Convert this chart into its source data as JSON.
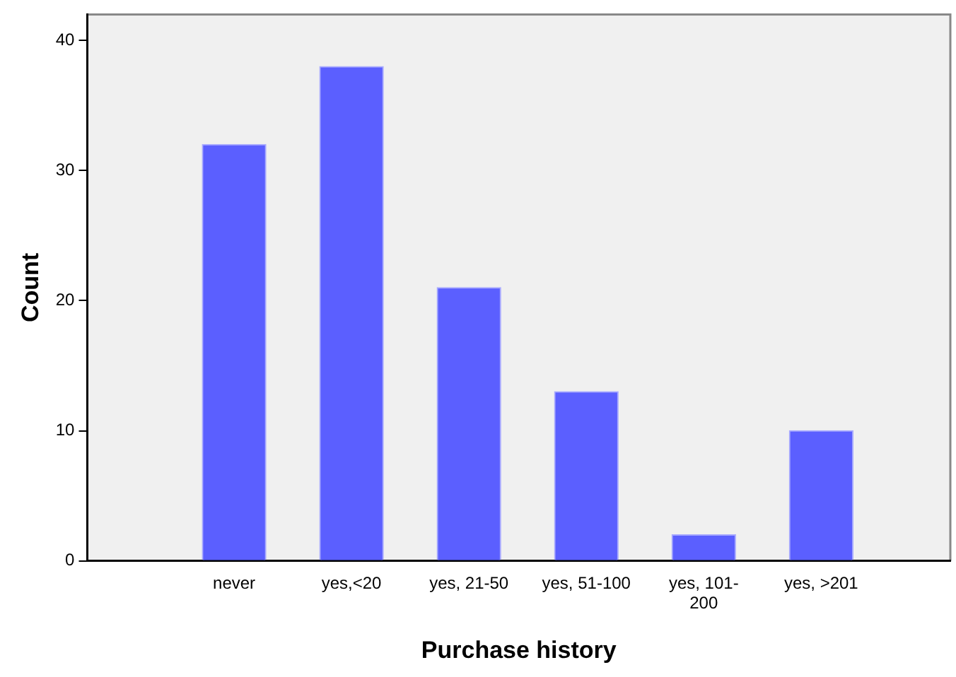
{
  "chart_data": {
    "type": "bar",
    "xlabel": "Purchase history",
    "ylabel": "Count",
    "categories": [
      "never",
      "yes,<20",
      "yes, 21-50",
      "yes, 51-100",
      "yes, 101-200",
      "yes, >201"
    ],
    "values": [
      32,
      38,
      21,
      13,
      2,
      10
    ],
    "color": "#5b5fff",
    "ylim": [
      0,
      42
    ],
    "yticks": [
      0,
      10,
      20,
      30,
      40
    ],
    "grid": false,
    "legend": false
  }
}
